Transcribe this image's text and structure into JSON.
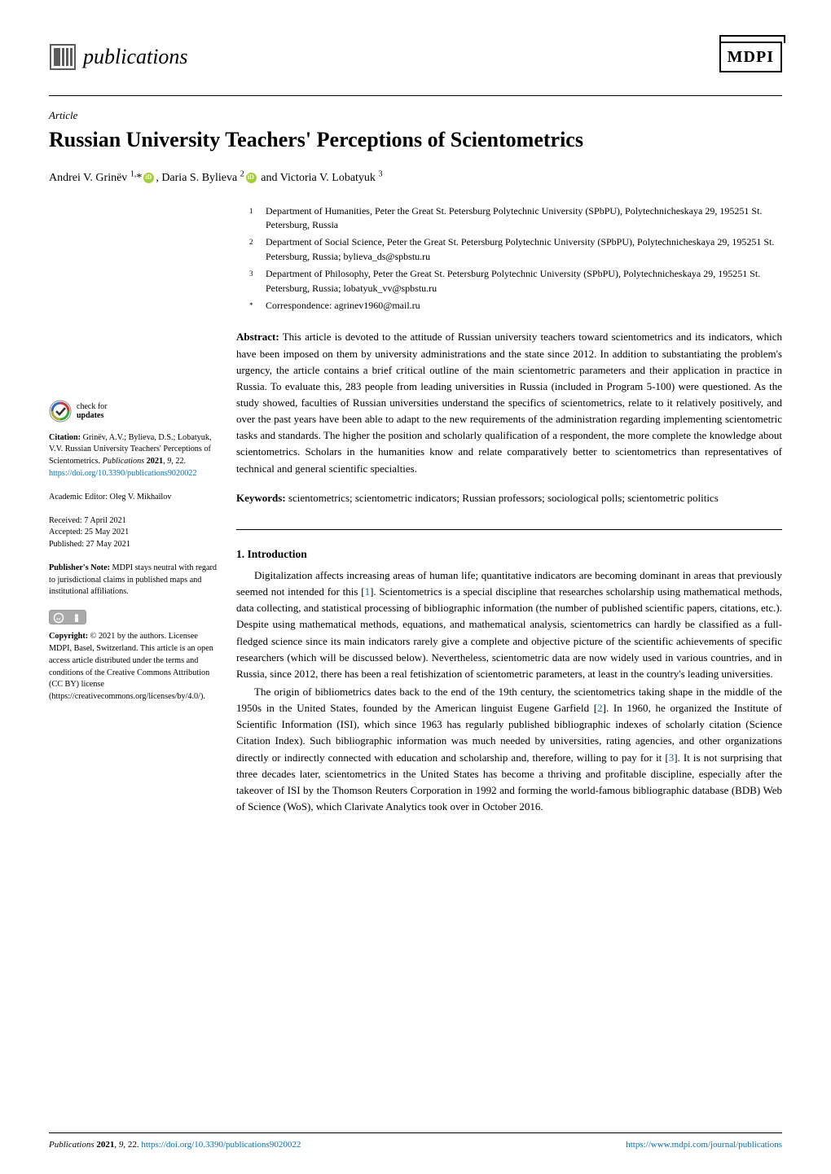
{
  "journal": {
    "name": "publications",
    "publisher": "MDPI"
  },
  "article": {
    "type": "Article",
    "title": "Russian University Teachers' Perceptions of Scientometrics",
    "authors_html": "Andrei V. Grinëv <sup>1,</sup>* , Daria S. Bylieva <sup>2</sup> and Victoria V. Lobatyuk <sup>3</sup>"
  },
  "affiliations": [
    {
      "num": "1",
      "text": "Department of Humanities, Peter the Great St. Petersburg Polytechnic University (SPbPU), Polytechnicheskaya 29, 195251 St. Petersburg, Russia"
    },
    {
      "num": "2",
      "text": "Department of Social Science, Peter the Great St. Petersburg Polytechnic University (SPbPU), Polytechnicheskaya 29, 195251 St. Petersburg, Russia; bylieva_ds@spbstu.ru"
    },
    {
      "num": "3",
      "text": "Department of Philosophy, Peter the Great St. Petersburg Polytechnic University (SPbPU), Polytechnicheskaya 29, 195251 St. Petersburg, Russia; lobatyuk_vv@spbstu.ru"
    },
    {
      "num": "*",
      "text": "Correspondence: agrinev1960@mail.ru"
    }
  ],
  "abstract": {
    "label": "Abstract:",
    "text": "This article is devoted to the attitude of Russian university teachers toward scientometrics and its indicators, which have been imposed on them by university administrations and the state since 2012. In addition to substantiating the problem's urgency, the article contains a brief critical outline of the main scientometric parameters and their application in practice in Russia. To evaluate this, 283 people from leading universities in Russia (included in Program 5-100) were questioned. As the study showed, faculties of Russian universities understand the specifics of scientometrics, relate to it relatively positively, and over the past years have been able to adapt to the new requirements of the administration regarding implementing scientometric tasks and standards. The higher the position and scholarly qualification of a respondent, the more complete the knowledge about scientometrics. Scholars in the humanities know and relate comparatively better to scientometrics than representatives of technical and general scientific specialties."
  },
  "keywords": {
    "label": "Keywords:",
    "text": "scientometrics; scientometric indicators; Russian professors; sociological polls; scientometric politics"
  },
  "section1": {
    "heading": "1. Introduction",
    "para1_html": "Digitalization affects increasing areas of human life; quantitative indicators are becoming dominant in areas that previously seemed not intended for this [<span class=\"ref-link\">1</span>]. Scientometrics is a special discipline that researches scholarship using mathematical methods, data collecting, and statistical processing of bibliographic information (the number of published scientific papers, citations, etc.). Despite using mathematical methods, equations, and mathematical analysis, scientometrics can hardly be classified as a full-fledged science since its main indicators rarely give a complete and objective picture of the scientific achievements of specific researchers (which will be discussed below). Nevertheless, scientometric data are now widely used in various countries, and in Russia, since 2012, there has been a real fetishization of scientometric parameters, at least in the country's leading universities.",
    "para2_html": "The origin of bibliometrics dates back to the end of the 19th century, the scientometrics taking shape in the middle of the 1950s in the United States, founded by the American linguist Eugene Garfield [<span class=\"ref-link\">2</span>]. In 1960, he organized the Institute of Scientific Information (ISI), which since 1963 has regularly published bibliographic indexes of scholarly citation (Science Citation Index). Such bibliographic information was much needed by universities, rating agencies, and other organizations directly or indirectly connected with education and scholarship and, therefore, willing to pay for it [<span class=\"ref-link\">3</span>]. It is not surprising that three decades later, scientometrics in the United States has become a thriving and profitable discipline, especially after the takeover of ISI by the Thomson Reuters Corporation in 1992 and forming the world-famous bibliographic database (BDB) Web of Science (WoS), which Clarivate Analytics took over in October 2016."
  },
  "sidebar": {
    "check_updates_line1": "check for",
    "check_updates_line2": "updates",
    "citation_html": "<b>Citation:</b> Grinëv, A.V.; Bylieva, D.S.; Lobatyuk, V.V. Russian University Teachers' Perceptions of Scientometrics. <i>Publications</i> <b>2021</b>, <i>9</i>, 22. <a>https://doi.org/10.3390/publications9020022</a>",
    "editor": "Academic Editor: Oleg V. Mikhailov",
    "received": "Received: 7 April 2021",
    "accepted": "Accepted: 25 May 2021",
    "published": "Published: 27 May 2021",
    "pubnote_html": "<b>Publisher's Note:</b> MDPI stays neutral with regard to jurisdictional claims in published maps and institutional affiliations.",
    "copyright_html": "<b>Copyright:</b> © 2021 by the authors. Licensee MDPI, Basel, Switzerland. This article is an open access article distributed under the terms and conditions of the Creative Commons Attribution (CC BY) license (https://creativecommons.org/licenses/by/4.0/)."
  },
  "footer": {
    "left_html": "<i>Publications</i> <b>2021</b>, <i>9</i>, 22. <a>https://doi.org/10.3390/publications9020022</a>",
    "right_html": "<a>https://www.mdpi.com/journal/publications</a>"
  },
  "colors": {
    "link": "#0070c0",
    "orcid": "#a6ce39",
    "logo_fill": "#5b5b5b"
  }
}
